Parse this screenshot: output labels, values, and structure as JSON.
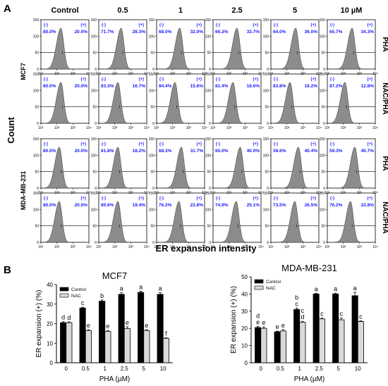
{
  "panel_a": {
    "letter": "A",
    "y_axis_label": "Count",
    "x_axis_label": "ER expansion intensity",
    "columns": [
      "Control",
      "0.5",
      "1",
      "2.5",
      "5",
      "10 µM"
    ],
    "cell_lines": [
      "MCF7",
      "MDA-MB-231"
    ],
    "treatments": [
      "PHA",
      "NAC/PHA"
    ],
    "y_ticks": [
      "150",
      "100",
      "50",
      "0"
    ],
    "x_ticks": [
      "10¹",
      "10²",
      "10³",
      "10⁴"
    ],
    "gate_labels": [
      "(-)",
      "(+)"
    ],
    "rows": [
      {
        "neg": [
          "80.0%",
          "71.7%",
          "68.0%",
          "66.3%",
          "64.0%",
          "65.7%"
        ],
        "pos": [
          "20.0%",
          "28.3%",
          "32.0%",
          "33.7%",
          "36.0%",
          "34.3%"
        ],
        "peak": [
          2.25,
          2.4,
          2.45,
          2.5,
          2.55,
          2.55
        ]
      },
      {
        "neg": [
          "80.0%",
          "83.3%",
          "84.4%",
          "81.4%",
          "83.8%",
          "87.2%"
        ],
        "pos": [
          "20.0%",
          "16.7%",
          "15.6%",
          "18.6%",
          "16.2%",
          "12.8%"
        ],
        "peak": [
          2.25,
          2.2,
          2.15,
          2.25,
          2.2,
          2.1
        ]
      },
      {
        "neg": [
          "80.0%",
          "81.8%",
          "68.3%",
          "60.0%",
          "59.6%",
          "59.3%"
        ],
        "pos": [
          "20.0%",
          "18.2%",
          "31.7%",
          "40.0%",
          "40.4%",
          "40.7%"
        ],
        "peak": [
          2.15,
          2.2,
          2.55,
          2.7,
          2.72,
          2.72
        ]
      },
      {
        "neg": [
          "80.0%",
          "80.6%",
          "76.2%",
          "74.9%",
          "73.5%",
          "76.2%"
        ],
        "pos": [
          "20.0%",
          "19.4%",
          "23.8%",
          "25.1%",
          "26.5%",
          "23.8%"
        ],
        "peak": [
          2.15,
          2.2,
          2.4,
          2.45,
          2.5,
          2.45
        ]
      }
    ]
  },
  "panel_b": {
    "letter": "B"
  },
  "chart_data": [
    {
      "type": "bar",
      "title": "MCF7",
      "xlabel": "PHA (µM)",
      "ylabel": "ER expansion (+) (%)",
      "ylim": [
        0,
        40
      ],
      "yticks": [
        0,
        10,
        20,
        30,
        40
      ],
      "categories": [
        "0",
        "0.5",
        "1",
        "2.5",
        "5",
        "10"
      ],
      "legend_position": "top-left",
      "series": [
        {
          "name": "Control",
          "color": "#000000",
          "values": [
            20.5,
            28.0,
            31.5,
            35.0,
            36.0,
            35.0
          ],
          "errors": [
            0.5,
            0.4,
            0.6,
            0.8,
            0.6,
            0.8
          ],
          "letters": [
            "d",
            "c",
            "b",
            "a",
            "a",
            "a"
          ]
        },
        {
          "name": "NAC",
          "color": "#d9d9d9",
          "values": [
            20.5,
            16.5,
            16.0,
            17.5,
            16.5,
            12.5
          ],
          "errors": [
            0.4,
            0.4,
            0.5,
            0.9,
            0.4,
            0.3
          ],
          "letters": [
            "d",
            "e",
            "e",
            "e",
            "e",
            "f"
          ]
        }
      ]
    },
    {
      "type": "bar",
      "title": "MDA-MB-231",
      "xlabel": "PHA (µM)",
      "ylabel": "ER expansion (+) (%)",
      "ylim": [
        0,
        50
      ],
      "yticks": [
        0,
        10,
        20,
        30,
        40,
        50
      ],
      "categories": [
        "0",
        "0.5",
        "1",
        "2.5",
        "5",
        "10"
      ],
      "legend_position": "top-left",
      "series": [
        {
          "name": "Control",
          "color": "#000000",
          "values": [
            20.5,
            18.0,
            31.0,
            40.0,
            40.0,
            39.0
          ],
          "errors": [
            0.6,
            0.4,
            0.8,
            0.4,
            0.5,
            2.0
          ],
          "letters": [
            "d\ne",
            "e",
            "b\nc",
            "a",
            "a",
            "a"
          ]
        },
        {
          "name": "NAC",
          "color": "#d9d9d9",
          "values": [
            20.0,
            18.5,
            23.5,
            25.5,
            25.0,
            24.0
          ],
          "errors": [
            0.8,
            0.8,
            0.6,
            0.5,
            1.0,
            0.4
          ],
          "letters": [
            "e",
            "e",
            "c\nd",
            "c",
            "c",
            "c"
          ]
        }
      ]
    }
  ]
}
